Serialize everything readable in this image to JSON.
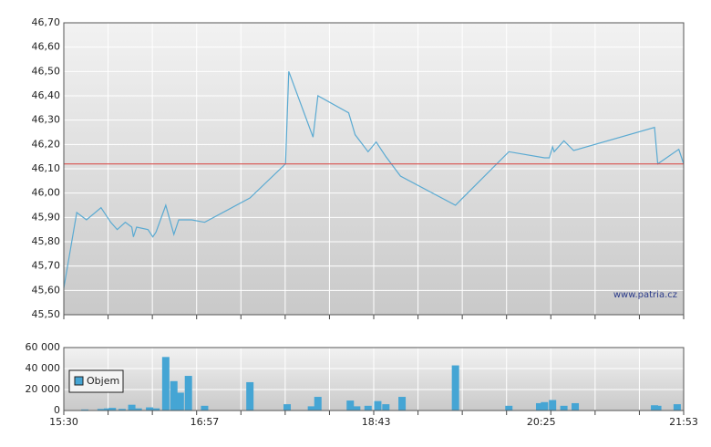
{
  "chart_data": [
    {
      "type": "line",
      "color": "#5aaad2",
      "reference": 46.12,
      "reference_color": "#d9534f",
      "watermark": "www.patria.cz",
      "xlim": [
        "15:30",
        "21:53"
      ],
      "ylim": [
        45.5,
        46.7
      ],
      "yticks": [
        {
          "value": 45.5,
          "label": "45,50"
        },
        {
          "value": 45.6,
          "label": "45,60"
        },
        {
          "value": 45.7,
          "label": "45,70"
        },
        {
          "value": 45.8,
          "label": "45,80"
        },
        {
          "value": 45.9,
          "label": "45,90"
        },
        {
          "value": 46.0,
          "label": "46,00"
        },
        {
          "value": 46.1,
          "label": "46,10"
        },
        {
          "value": 46.2,
          "label": "46,20"
        },
        {
          "value": 46.3,
          "label": "46,30"
        },
        {
          "value": 46.4,
          "label": "46,40"
        },
        {
          "value": 46.5,
          "label": "46,50"
        },
        {
          "value": 46.6,
          "label": "46,60"
        },
        {
          "value": 46.7,
          "label": "46,70"
        }
      ],
      "x": [
        "15:30",
        "15:38",
        "15:44",
        "15:53",
        "15:59",
        "16:03",
        "16:08",
        "16:12",
        "16:13",
        "16:15",
        "16:22",
        "16:25",
        "16:27",
        "16:33",
        "16:38",
        "16:41",
        "16:49",
        "16:57",
        "17:25",
        "17:47",
        "17:49",
        "18:04",
        "18:07",
        "18:26",
        "18:30",
        "18:38",
        "18:43",
        "18:49",
        "18:58",
        "19:32",
        "20:05",
        "20:27",
        "20:30",
        "20:32",
        "20:33",
        "20:39",
        "20:45",
        "21:35",
        "21:37",
        "21:50",
        "21:51",
        "21:53"
      ],
      "values": [
        45.61,
        45.92,
        45.89,
        45.94,
        45.88,
        45.85,
        45.88,
        45.86,
        45.82,
        45.86,
        45.85,
        45.82,
        45.84,
        45.95,
        45.83,
        45.89,
        45.89,
        45.88,
        45.98,
        46.12,
        46.5,
        46.23,
        46.4,
        46.33,
        46.24,
        46.17,
        46.21,
        46.15,
        46.07,
        45.95,
        46.17,
        46.145,
        46.145,
        46.19,
        46.17,
        46.215,
        46.175,
        46.27,
        46.12,
        46.18,
        46.16,
        46.12
      ]
    },
    {
      "type": "bar",
      "color": "#45a5d4",
      "legend": "Objem",
      "xlim": [
        "15:30",
        "21:53"
      ],
      "xticks": [
        "15:30",
        "16:57",
        "18:43",
        "20:25",
        "21:53"
      ],
      "ylim": [
        0,
        60000
      ],
      "yticks": [
        0,
        {
          "value": 20000,
          "label": "20 000"
        },
        {
          "value": 40000,
          "label": "40 000"
        },
        {
          "value": 60000,
          "label": "60 000"
        }
      ],
      "x": [
        "15:43",
        "15:53",
        "15:57",
        "16:00",
        "16:06",
        "16:12",
        "16:16",
        "16:23",
        "16:27",
        "16:33",
        "16:38",
        "16:42",
        "16:47",
        "16:57",
        "17:25",
        "17:48",
        "18:03",
        "18:07",
        "18:27",
        "18:31",
        "18:38",
        "18:44",
        "18:49",
        "18:59",
        "19:32",
        "20:05",
        "20:24",
        "20:27",
        "20:32",
        "20:39",
        "20:46",
        "21:35",
        "21:37",
        "21:49"
      ],
      "values": [
        1000,
        1500,
        2000,
        2500,
        1500,
        5500,
        2000,
        3000,
        2000,
        51000,
        28000,
        17000,
        33000,
        4500,
        27000,
        6000,
        4000,
        13000,
        9500,
        4000,
        4500,
        9000,
        6000,
        13000,
        43000,
        4500,
        7000,
        8000,
        10000,
        4500,
        7000,
        5000,
        4500,
        6000
      ]
    }
  ]
}
